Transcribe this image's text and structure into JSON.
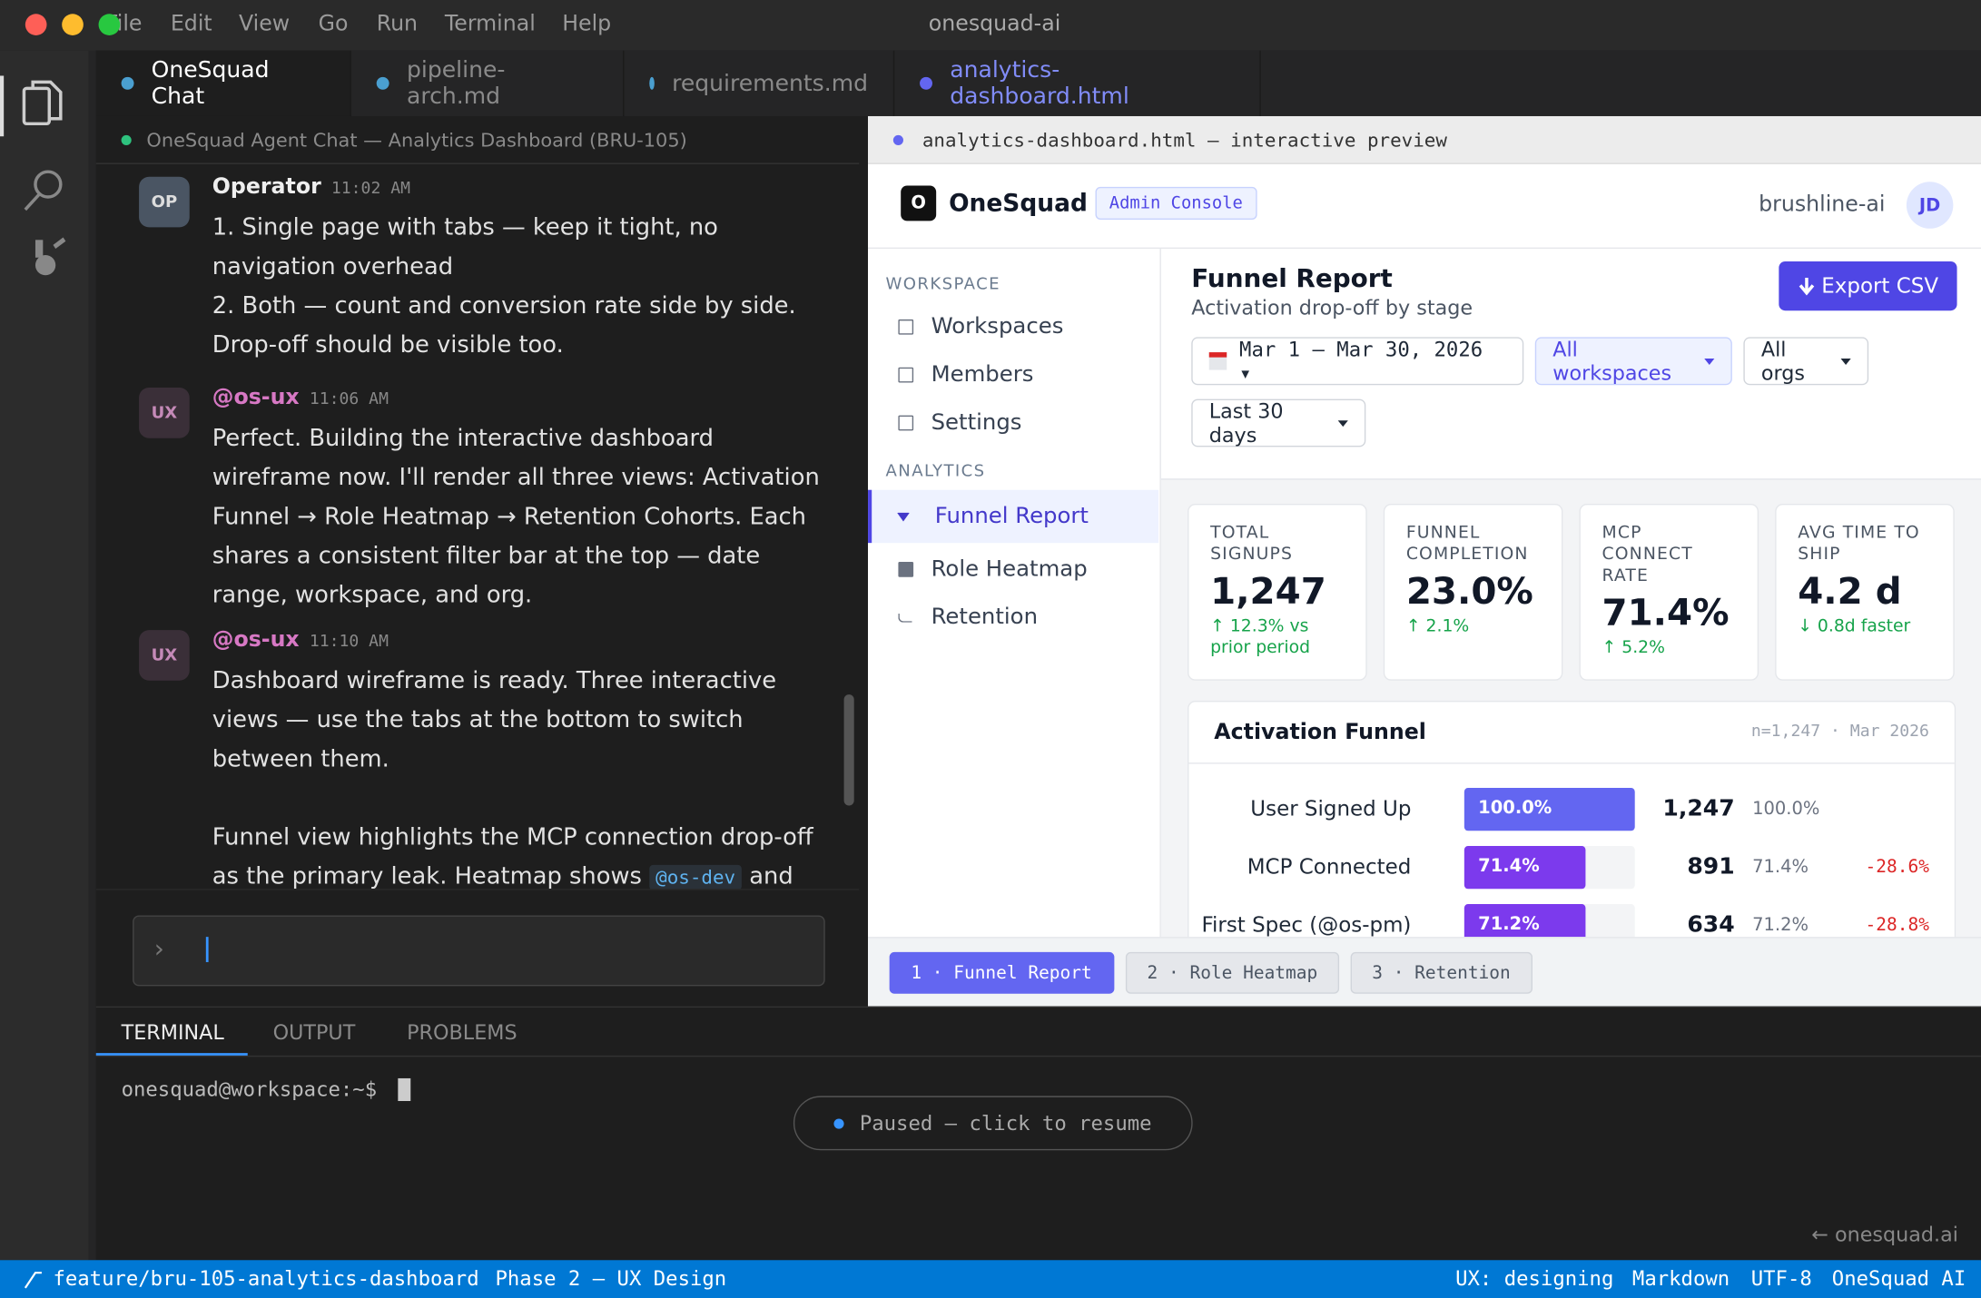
{
  "window": {
    "title": "onesquad-ai",
    "menu": [
      "File",
      "Edit",
      "View",
      "Go",
      "Run",
      "Terminal",
      "Help"
    ]
  },
  "tabs": [
    "OneSquad Chat",
    "pipeline-arch.md",
    "requirements.md",
    "analytics-dashboard.html"
  ],
  "chat": {
    "header": "OneSquad Agent Chat — Analytics Dashboard (BRU-105)",
    "messages": [
      {
        "avatar": "OP",
        "author": "Operator",
        "time": "11:02 AM",
        "paragraphs": [
          "1. Single page with tabs — keep it tight, no navigation overhead",
          "2. Both — count and conversion rate side by side. Drop-off should be visible too."
        ]
      },
      {
        "avatar": "UX",
        "author": "@os-ux",
        "time": "11:06 AM",
        "paragraphs": [
          "Perfect. Building the interactive dashboard wireframe now. I'll render all three views: Activation Funnel → Role Heatmap → Retention Cohorts. Each shares a consistent filter bar at the top — date range, workspace, and org."
        ]
      },
      {
        "avatar": "UX",
        "author": "@os-ux",
        "time": "11:10 AM",
        "paragraphs": [
          "Dashboard wireframe is ready. Three interactive views — use the tabs at the bottom to switch between them."
        ],
        "last_text": "Funnel view highlights the MCP connection drop-off as the primary leak. Heatmap shows",
        "mention": "@os-dev",
        "tail": "and"
      }
    ],
    "input_prompt": "›"
  },
  "preview": {
    "header": "analytics-dashboard.html — interactive preview",
    "brand_logo": "O",
    "brand": "OneSquad",
    "badge": "Admin Console",
    "org": "brushline-ai",
    "user": "JD",
    "sidebar": [
      {
        "section": "WORKSPACE",
        "items": [
          "Workspaces",
          "Members",
          "Settings"
        ]
      },
      {
        "section": "ANALYTICS",
        "items": [
          "Funnel Report",
          "Role Heatmap",
          "Retention"
        ]
      }
    ],
    "report_title": "Funnel Report",
    "report_subtitle": "Activation drop-off by stage",
    "export": "Export CSV",
    "filters": [
      "Mar 1 – Mar 30, 2026 ▾",
      "All workspaces",
      "All orgs",
      "Last 30 days"
    ],
    "kpis": [
      {
        "label": "TOTAL SIGNUPS",
        "value": "1,247",
        "delta": "↑ 12.3% vs prior period"
      },
      {
        "label": "FUNNEL COMPLETION",
        "value": "23.0%",
        "delta": "↑ 2.1%"
      },
      {
        "label": "MCP CONNECT RATE",
        "value": "71.4%",
        "delta": "↑ 5.2%"
      },
      {
        "label": "AVG TIME TO SHIP",
        "value": "4.2 d",
        "delta": "↓ 0.8d faster"
      }
    ],
    "funnel": {
      "title": "Activation Funnel",
      "meta": "n=1,247 · Mar 2026",
      "rows": [
        {
          "stage": "User Signed Up",
          "percent": 100.0,
          "percent_label": "100.0%",
          "count": "1,247",
          "share": "100.0%",
          "color": "#6366f1"
        },
        {
          "stage": "MCP Connected",
          "percent": 71.4,
          "percent_label": "71.4%",
          "count": "891",
          "share": "71.4%",
          "drop": "-28.6%",
          "color": "#7c3aed"
        },
        {
          "stage": "First Spec (@os-pm)",
          "percent": 71.2,
          "percent_label": "71.2%",
          "count": "634",
          "share": "71.2%",
          "drop": "-28.8%",
          "color": "#7c3aed"
        }
      ]
    },
    "view_tabs": [
      "1 · Funnel Report",
      "2 · Role Heatmap",
      "3 · Retention"
    ]
  },
  "panel": {
    "tabs": [
      "TERMINAL",
      "OUTPUT",
      "PROBLEMS"
    ],
    "prompt": "onesquad@workspace:~$",
    "paused": "Paused — click to resume",
    "link": "← onesquad.ai"
  },
  "status": {
    "branch": "feature/bru-105-analytics-dashboard",
    "phase": "Phase 2 — UX Design",
    "right": [
      "UX: designing",
      "Markdown",
      "UTF-8",
      "OneSquad AI"
    ]
  }
}
